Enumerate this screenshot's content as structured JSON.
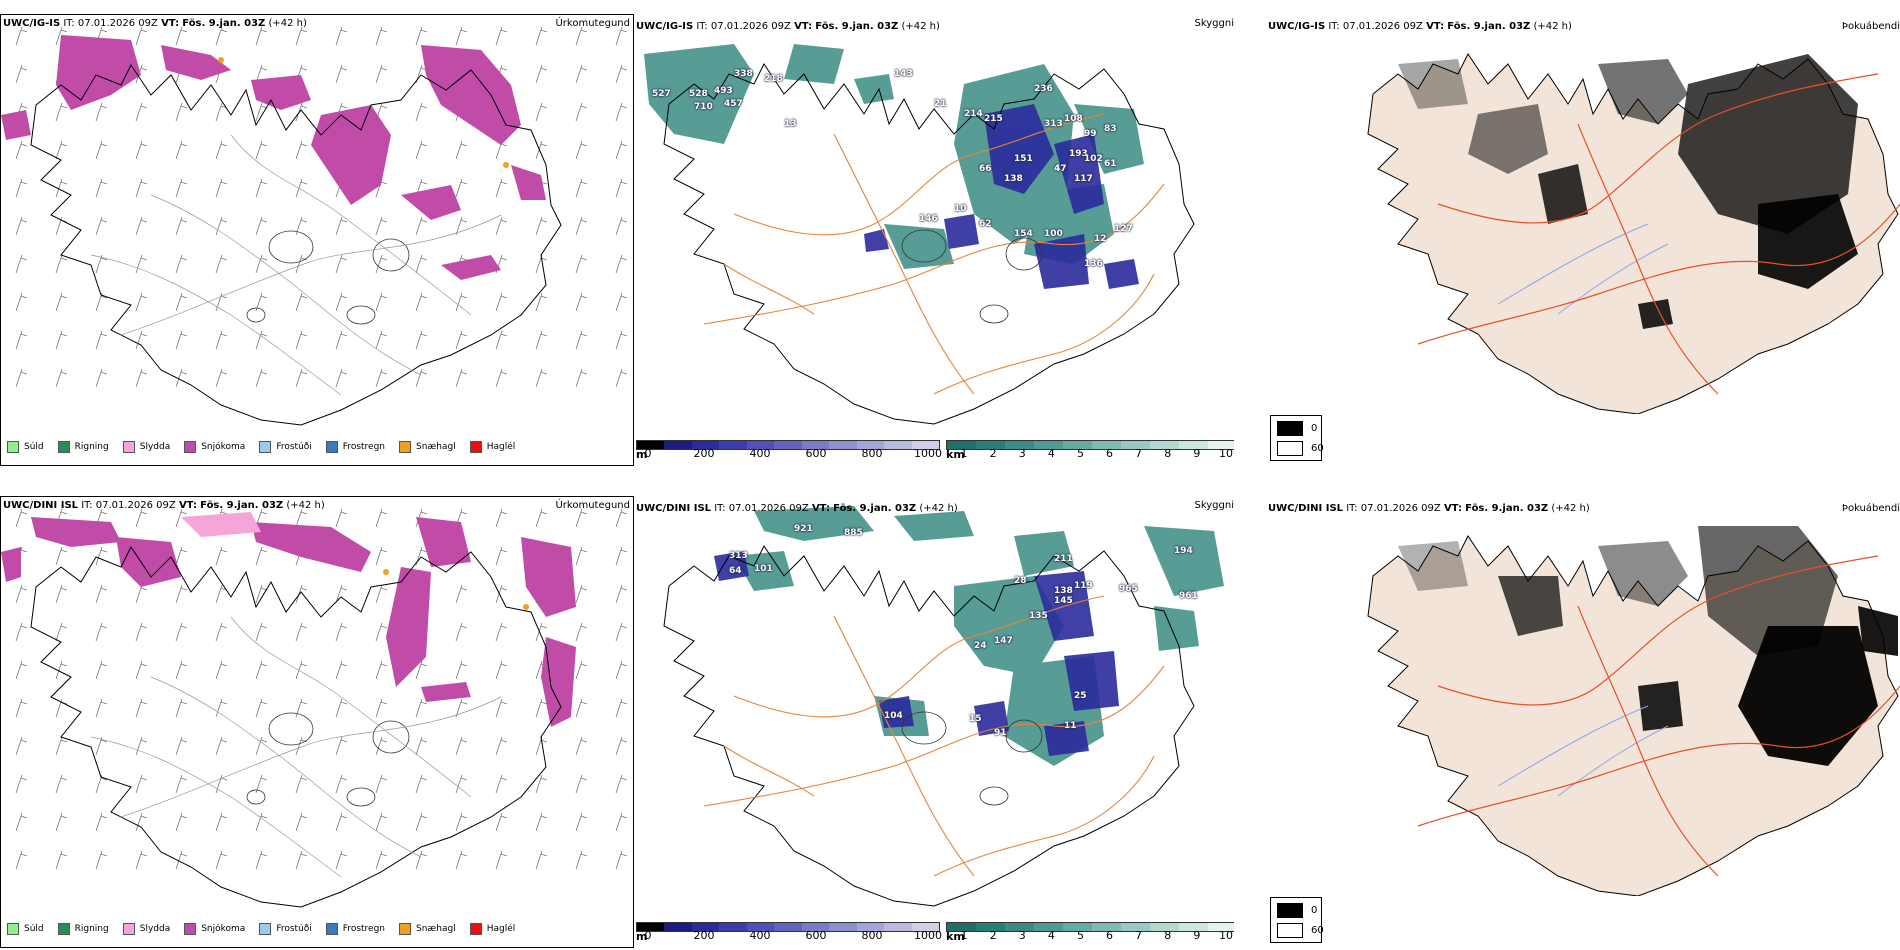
{
  "rows": [
    {
      "model": "UWC/IG-IS",
      "it_label": "IT:",
      "it_value": "07.01.2026 09Z",
      "vt_label": "VT:",
      "vt_value": "Fös. 9.jan. 03Z",
      "lead": "(+42 h)",
      "precip_title": "Úrkomutegund",
      "vis_title": "Skyggni",
      "fog_title": "Þokuábendi",
      "height_labels": [
        "527",
        "528",
        "493",
        "710",
        "457",
        "218",
        "338",
        "13",
        "143",
        "21",
        "214",
        "215",
        "236",
        "313",
        "108",
        "99",
        "83",
        "193",
        "102",
        "47",
        "117",
        "61",
        "151",
        "66",
        "10",
        "146",
        "154",
        "100",
        "12",
        "127",
        "136",
        "138",
        "62"
      ]
    },
    {
      "model": "UWC/DINI ISL",
      "it_label": "IT:",
      "it_value": "07.01.2026 09Z",
      "vt_label": "VT:",
      "vt_value": "Fös. 9.jan. 03Z",
      "lead": "(+42 h)",
      "precip_title": "Úrkomutegund",
      "vis_title": "Skyggni",
      "fog_title": "Þokuábendi",
      "height_labels": [
        "921",
        "885",
        "313",
        "101",
        "64",
        "211",
        "194",
        "28",
        "138",
        "119",
        "145",
        "135",
        "965",
        "961",
        "147",
        "24",
        "11",
        "104",
        "15",
        "91",
        "25"
      ]
    }
  ],
  "precip_legend": [
    {
      "label": "Súld",
      "color": "#90ee90"
    },
    {
      "label": "Rigning",
      "color": "#2e8b57"
    },
    {
      "label": "Slydda",
      "color": "#f4a6d8"
    },
    {
      "label": "Snjókoma",
      "color": "#c04ca8"
    },
    {
      "label": "Frostúði",
      "color": "#9ec9f0"
    },
    {
      "label": "Frostregn",
      "color": "#3a78c8"
    },
    {
      "label": "Snæhagl",
      "color": "#f0a020"
    },
    {
      "label": "Haglél",
      "color": "#e81010"
    }
  ],
  "cloud_base_scale": {
    "unit": "m",
    "ticks": [
      "0",
      "200",
      "400",
      "600",
      "800",
      "1000"
    ],
    "colors": [
      "#000000",
      "#1c1c80",
      "#2b2b9c",
      "#3c3cb0",
      "#5050b8",
      "#6464c0",
      "#7a7ac8",
      "#8f8fd0",
      "#a4a4d8",
      "#babae0",
      "#cfcfe8"
    ]
  },
  "visibility_scale": {
    "unit": "km",
    "ticks": [
      "1",
      "2",
      "3",
      "4",
      "5",
      "6",
      "7",
      "8",
      "9",
      "10"
    ],
    "colors": [
      "#1f6f6a",
      "#2a7d77",
      "#3b8b84",
      "#4f9a92",
      "#66aba2",
      "#7fbbb2",
      "#98c9c2",
      "#b2d8d2",
      "#cce6e1",
      "#e6f2f0"
    ]
  },
  "fog_legend": {
    "top_label": "0",
    "bottom_label": "60",
    "top_color": "#000000",
    "bottom_color": "#ffffff"
  },
  "colors": {
    "snow": "#c04ca8",
    "sleet": "#f4a6d8",
    "rain": "#2e8b57",
    "snow_pellets": "#f0a020",
    "roads": "#e8843a",
    "land_fog": "#f2e4d8",
    "rivers": "#8aa6e8"
  }
}
